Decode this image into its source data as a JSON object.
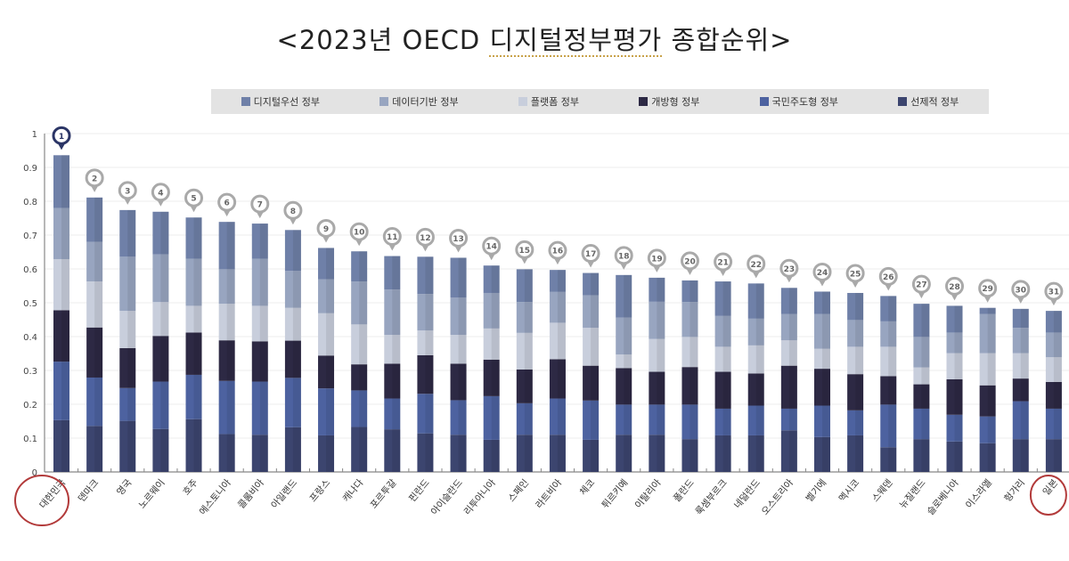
{
  "chart_data": {
    "type": "bar",
    "stacked": true,
    "title": "<2023년 OECD 디지털정부평가 종합순위>",
    "title_parts": [
      "<2023년 OECD ",
      "디지털정부평가",
      " 종합순위>"
    ],
    "xlabel": "",
    "ylabel": "",
    "ylim": [
      0,
      1
    ],
    "yticks": [
      "0",
      "0.1",
      "0.2",
      "0.3",
      "0.4",
      "0.5",
      "0.6",
      "0.7",
      "0.8",
      "0.9",
      "1"
    ],
    "grid": true,
    "legend_position": "top",
    "categories": [
      "대한민국",
      "덴마크",
      "영국",
      "노르웨이",
      "호주",
      "에스토니아",
      "콜롬비아",
      "아일랜드",
      "프랑스",
      "캐나다",
      "포르투갈",
      "핀란드",
      "아이슬란드",
      "리투아니아",
      "스페인",
      "라트비아",
      "체코",
      "튀르키예",
      "이탈리아",
      "폴란드",
      "룩셈부르크",
      "네덜란드",
      "오스트리아",
      "벨기에",
      "멕시코",
      "스웨덴",
      "뉴질랜드",
      "슬로베니아",
      "이스라엘",
      "헝가리",
      "일본"
    ],
    "ranks": [
      "1",
      "2",
      "3",
      "4",
      "5",
      "6",
      "7",
      "8",
      "9",
      "10",
      "11",
      "12",
      "13",
      "14",
      "15",
      "16",
      "17",
      "18",
      "19",
      "20",
      "21",
      "22",
      "23",
      "24",
      "25",
      "26",
      "27",
      "28",
      "29",
      "30",
      "31"
    ],
    "highlighted": [
      "대한민국",
      "일본"
    ],
    "series": [
      {
        "name": "디지털우선 정부",
        "color": "#6f80a8",
        "values": [
          0.156,
          0.131,
          0.138,
          0.126,
          0.122,
          0.14,
          0.104,
          0.121,
          0.093,
          0.089,
          0.099,
          0.11,
          0.118,
          0.081,
          0.097,
          0.065,
          0.066,
          0.126,
          0.071,
          0.064,
          0.102,
          0.104,
          0.077,
          0.066,
          0.08,
          0.075,
          0.098,
          0.079,
          0.018,
          0.056,
          0.064
        ]
      },
      {
        "name": "데이터기반 정부",
        "color": "#98a5c0",
        "values": [
          0.151,
          0.117,
          0.16,
          0.141,
          0.139,
          0.102,
          0.139,
          0.109,
          0.1,
          0.127,
          0.134,
          0.108,
          0.11,
          0.105,
          0.091,
          0.091,
          0.096,
          0.109,
          0.11,
          0.103,
          0.091,
          0.079,
          0.078,
          0.103,
          0.079,
          0.075,
          0.09,
          0.061,
          0.116,
          0.075,
          0.073
        ]
      },
      {
        "name": "플랫폼 정부",
        "color": "#c8cedc",
        "values": [
          0.151,
          0.136,
          0.11,
          0.1,
          0.079,
          0.108,
          0.105,
          0.097,
          0.125,
          0.118,
          0.085,
          0.073,
          0.085,
          0.092,
          0.108,
          0.108,
          0.112,
          0.04,
          0.097,
          0.089,
          0.074,
          0.083,
          0.075,
          0.059,
          0.081,
          0.087,
          0.05,
          0.077,
          0.095,
          0.075,
          0.073
        ]
      },
      {
        "name": "개방형 정부",
        "color": "#2d2944",
        "values": [
          0.152,
          0.148,
          0.118,
          0.135,
          0.125,
          0.12,
          0.119,
          0.11,
          0.097,
          0.077,
          0.103,
          0.114,
          0.108,
          0.108,
          0.1,
          0.116,
          0.103,
          0.108,
          0.097,
          0.111,
          0.109,
          0.095,
          0.127,
          0.109,
          0.107,
          0.084,
          0.072,
          0.105,
          0.092,
          0.067,
          0.079
        ]
      },
      {
        "name": "국민주도형 정부",
        "color": "#4d62a0",
        "values": [
          0.173,
          0.143,
          0.097,
          0.14,
          0.131,
          0.157,
          0.157,
          0.146,
          0.139,
          0.108,
          0.091,
          0.117,
          0.102,
          0.129,
          0.093,
          0.107,
          0.116,
          0.089,
          0.089,
          0.102,
          0.079,
          0.088,
          0.064,
          0.093,
          0.074,
          0.126,
          0.09,
          0.079,
          0.079,
          0.112,
          0.09
        ]
      },
      {
        "name": "선제적 정부",
        "color": "#3c456f",
        "values": [
          0.153,
          0.136,
          0.151,
          0.127,
          0.156,
          0.112,
          0.11,
          0.132,
          0.108,
          0.133,
          0.126,
          0.114,
          0.11,
          0.095,
          0.11,
          0.11,
          0.095,
          0.11,
          0.11,
          0.097,
          0.108,
          0.108,
          0.123,
          0.103,
          0.108,
          0.073,
          0.097,
          0.09,
          0.085,
          0.097,
          0.097
        ]
      }
    ],
    "colors": {
      "first_marker": "#2b3566",
      "marker": "#a9a9a9",
      "highlight_circle": "#b23a3a",
      "legend_bg": "#e3e3e3"
    }
  }
}
